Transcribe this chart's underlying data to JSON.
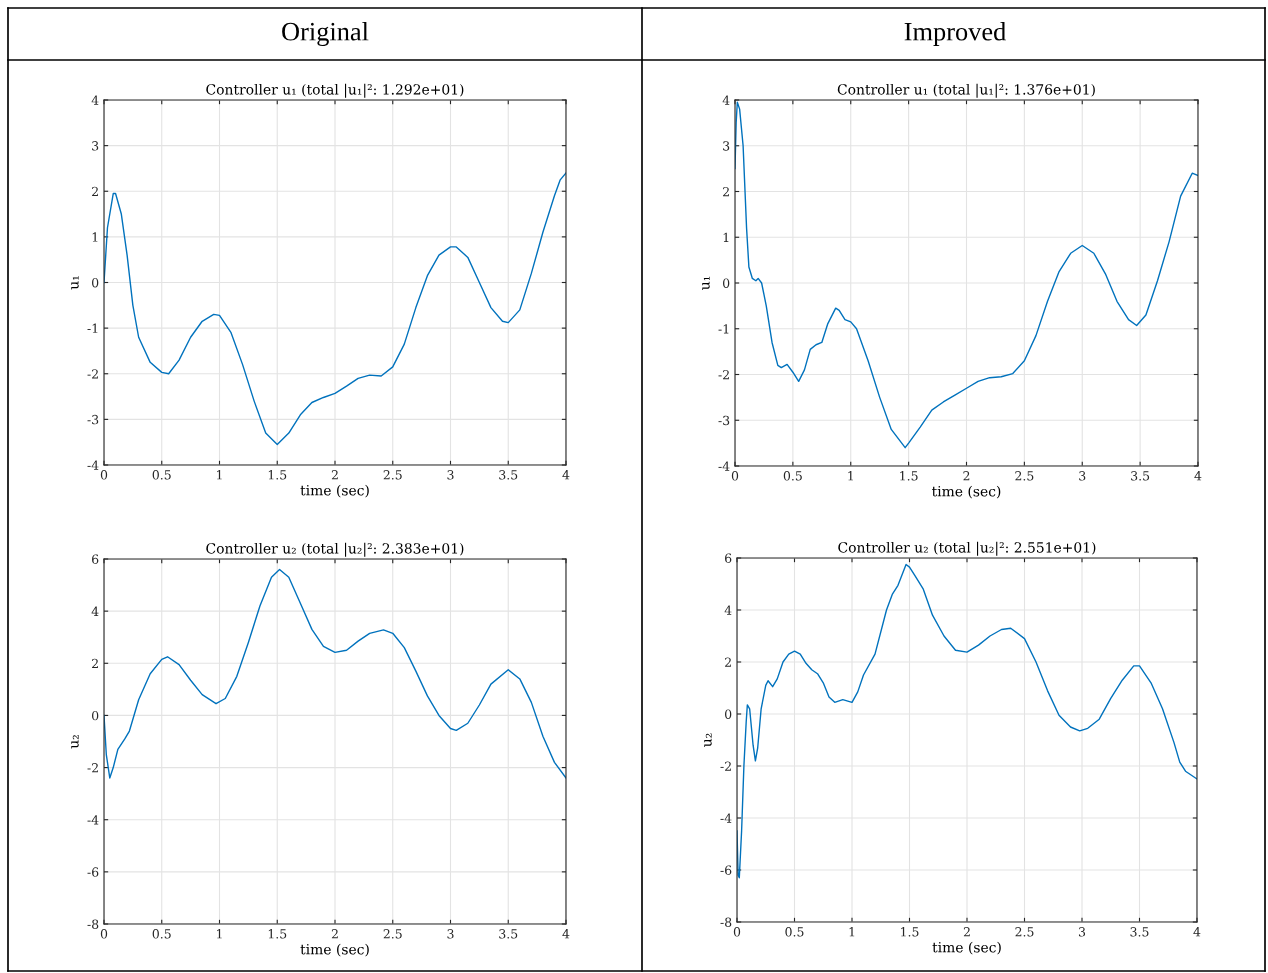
{
  "chart_data": [
    {
      "type": "line",
      "title": "Controller u₁ (total |u₁|²: 1.292e+01)",
      "xlabel": "time (sec)",
      "ylabel": "u₁",
      "annotations": [
        "Original"
      ],
      "grid": true,
      "xlim": [
        0,
        4
      ],
      "ylim": [
        -4,
        4
      ],
      "xticks": [
        0,
        0.5,
        1,
        1.5,
        2,
        2.5,
        3,
        3.5,
        4
      ],
      "yticks": [
        -4,
        -3,
        -2,
        -1,
        0,
        1,
        2,
        3,
        4
      ],
      "series": [
        {
          "color": "#0072bd",
          "x": [
            0,
            0.03,
            0.08,
            0.1,
            0.15,
            0.2,
            0.25,
            0.3,
            0.4,
            0.5,
            0.56,
            0.65,
            0.75,
            0.85,
            0.95,
            1.0,
            1.1,
            1.2,
            1.3,
            1.4,
            1.5,
            1.6,
            1.7,
            1.8,
            1.9,
            2.0,
            2.1,
            2.2,
            2.3,
            2.4,
            2.5,
            2.6,
            2.7,
            2.8,
            2.9,
            3.0,
            3.05,
            3.15,
            3.25,
            3.35,
            3.45,
            3.5,
            3.6,
            3.7,
            3.8,
            3.9,
            3.95,
            4.0
          ],
          "values": [
            0,
            1.2,
            1.95,
            1.95,
            1.5,
            0.6,
            -0.5,
            -1.2,
            -1.75,
            -1.97,
            -2.0,
            -1.7,
            -1.2,
            -0.85,
            -0.7,
            -0.72,
            -1.1,
            -1.8,
            -2.6,
            -3.3,
            -3.55,
            -3.3,
            -2.9,
            -2.63,
            -2.52,
            -2.43,
            -2.27,
            -2.1,
            -2.03,
            -2.05,
            -1.85,
            -1.35,
            -0.55,
            0.15,
            0.6,
            0.78,
            0.78,
            0.55,
            0.0,
            -0.55,
            -0.85,
            -0.88,
            -0.6,
            0.2,
            1.1,
            1.9,
            2.25,
            2.4
          ]
        }
      ]
    },
    {
      "type": "line",
      "title": "Controller u₁ (total |u₁|²: 1.376e+01)",
      "xlabel": "time (sec)",
      "ylabel": "u₁",
      "annotations": [
        "Improved"
      ],
      "grid": true,
      "xlim": [
        0,
        4
      ],
      "ylim": [
        -4,
        4
      ],
      "xticks": [
        0,
        0.5,
        1,
        1.5,
        2,
        2.5,
        3,
        3.5,
        4
      ],
      "yticks": [
        -4,
        -3,
        -2,
        -1,
        0,
        1,
        2,
        3,
        4
      ],
      "series": [
        {
          "color": "#0072bd",
          "x": [
            0,
            0.01,
            0.02,
            0.04,
            0.07,
            0.1,
            0.12,
            0.15,
            0.18,
            0.2,
            0.23,
            0.27,
            0.32,
            0.37,
            0.4,
            0.45,
            0.5,
            0.55,
            0.6,
            0.65,
            0.7,
            0.75,
            0.8,
            0.87,
            0.9,
            0.95,
            1.0,
            1.05,
            1.15,
            1.25,
            1.35,
            1.47,
            1.5,
            1.6,
            1.7,
            1.8,
            1.9,
            2.0,
            2.1,
            2.2,
            2.3,
            2.4,
            2.5,
            2.6,
            2.7,
            2.8,
            2.9,
            3.0,
            3.1,
            3.2,
            3.3,
            3.4,
            3.47,
            3.55,
            3.65,
            3.75,
            3.85,
            3.95,
            4.0
          ],
          "values": [
            2.5,
            3.5,
            3.95,
            3.8,
            3.0,
            1.2,
            0.35,
            0.1,
            0.05,
            0.1,
            0.0,
            -0.5,
            -1.3,
            -1.8,
            -1.85,
            -1.78,
            -1.95,
            -2.15,
            -1.9,
            -1.45,
            -1.35,
            -1.3,
            -0.9,
            -0.55,
            -0.6,
            -0.8,
            -0.85,
            -1.0,
            -1.7,
            -2.5,
            -3.2,
            -3.6,
            -3.5,
            -3.15,
            -2.78,
            -2.6,
            -2.45,
            -2.3,
            -2.15,
            -2.07,
            -2.05,
            -1.98,
            -1.7,
            -1.15,
            -0.4,
            0.25,
            0.65,
            0.82,
            0.65,
            0.2,
            -0.4,
            -0.8,
            -0.93,
            -0.7,
            0.05,
            0.9,
            1.9,
            2.4,
            2.35
          ]
        }
      ]
    },
    {
      "type": "line",
      "title": "Controller u₂ (total |u₂|²: 2.383e+01)",
      "xlabel": "time (sec)",
      "ylabel": "u₂",
      "grid": true,
      "xlim": [
        0,
        4
      ],
      "ylim": [
        -8,
        6
      ],
      "xticks": [
        0,
        0.5,
        1,
        1.5,
        2,
        2.5,
        3,
        3.5,
        4
      ],
      "yticks": [
        -8,
        -6,
        -4,
        -2,
        0,
        2,
        4,
        6
      ],
      "series": [
        {
          "color": "#0072bd",
          "x": [
            0,
            0.02,
            0.05,
            0.08,
            0.12,
            0.18,
            0.22,
            0.3,
            0.4,
            0.5,
            0.55,
            0.65,
            0.75,
            0.85,
            0.97,
            1.05,
            1.15,
            1.25,
            1.35,
            1.45,
            1.52,
            1.6,
            1.7,
            1.8,
            1.9,
            2.0,
            2.1,
            2.2,
            2.3,
            2.42,
            2.5,
            2.6,
            2.7,
            2.8,
            2.9,
            3.0,
            3.05,
            3.15,
            3.25,
            3.35,
            3.5,
            3.6,
            3.7,
            3.8,
            3.9,
            4.0
          ],
          "values": [
            0,
            -1.5,
            -2.4,
            -2.0,
            -1.3,
            -0.9,
            -0.6,
            0.6,
            1.6,
            2.15,
            2.25,
            1.95,
            1.35,
            0.8,
            0.45,
            0.65,
            1.5,
            2.8,
            4.2,
            5.3,
            5.6,
            5.3,
            4.3,
            3.3,
            2.65,
            2.42,
            2.5,
            2.85,
            3.15,
            3.28,
            3.15,
            2.6,
            1.7,
            0.75,
            0.0,
            -0.5,
            -0.57,
            -0.3,
            0.4,
            1.2,
            1.75,
            1.4,
            0.5,
            -0.8,
            -1.8,
            -2.4
          ]
        }
      ]
    },
    {
      "type": "line",
      "title": "Controller u₂ (total |u₂|²: 2.551e+01)",
      "xlabel": "time (sec)",
      "ylabel": "u₂",
      "grid": true,
      "xlim": [
        0,
        4
      ],
      "ylim": [
        -8,
        6
      ],
      "xticks": [
        0,
        0.5,
        1,
        1.5,
        2,
        2.5,
        3,
        3.5,
        4
      ],
      "yticks": [
        -8,
        -6,
        -4,
        -2,
        0,
        2,
        4,
        6
      ],
      "series": [
        {
          "color": "#0072bd",
          "x": [
            0,
            0.01,
            0.02,
            0.04,
            0.06,
            0.08,
            0.09,
            0.11,
            0.14,
            0.16,
            0.18,
            0.21,
            0.25,
            0.27,
            0.31,
            0.35,
            0.4,
            0.45,
            0.5,
            0.55,
            0.6,
            0.65,
            0.7,
            0.75,
            0.8,
            0.85,
            0.92,
            1.0,
            1.05,
            1.1,
            1.2,
            1.3,
            1.35,
            1.4,
            1.47,
            1.5,
            1.55,
            1.62,
            1.7,
            1.8,
            1.9,
            2.0,
            2.1,
            2.2,
            2.3,
            2.38,
            2.5,
            2.6,
            2.7,
            2.8,
            2.9,
            2.98,
            3.05,
            3.15,
            3.25,
            3.35,
            3.45,
            3.5,
            3.6,
            3.7,
            3.8,
            3.85,
            3.9,
            4.0
          ],
          "values": [
            -4.5,
            -6.2,
            -6.3,
            -4.5,
            -2.0,
            -0.3,
            0.35,
            0.2,
            -1.2,
            -1.8,
            -1.3,
            0.2,
            1.1,
            1.28,
            1.05,
            1.35,
            2.0,
            2.3,
            2.42,
            2.3,
            1.95,
            1.7,
            1.55,
            1.2,
            0.65,
            0.45,
            0.55,
            0.45,
            0.85,
            1.5,
            2.3,
            4.0,
            4.6,
            4.95,
            5.75,
            5.65,
            5.3,
            4.8,
            3.8,
            3.0,
            2.45,
            2.38,
            2.65,
            3.0,
            3.25,
            3.3,
            2.9,
            2.0,
            0.9,
            -0.05,
            -0.5,
            -0.65,
            -0.55,
            -0.2,
            0.6,
            1.3,
            1.85,
            1.85,
            1.2,
            0.2,
            -1.1,
            -1.85,
            -2.2,
            -2.5
          ]
        }
      ]
    }
  ]
}
